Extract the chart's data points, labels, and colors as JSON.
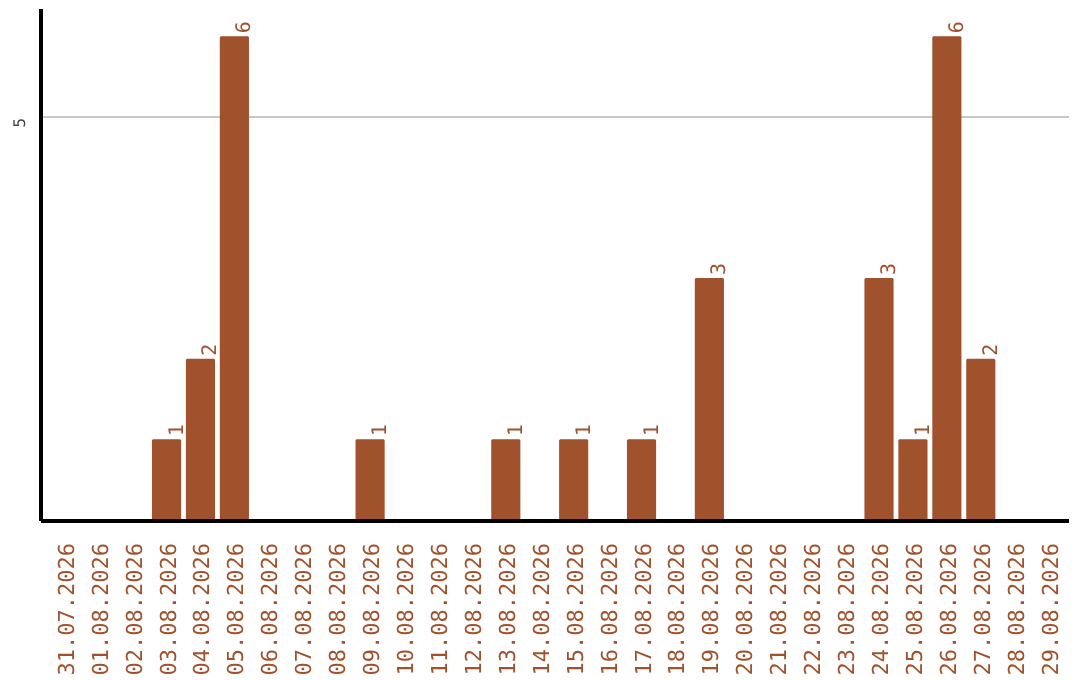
{
  "chart_data": {
    "type": "bar",
    "categories": [
      "31.07.2026",
      "01.08.2026",
      "02.08.2026",
      "03.08.2026",
      "04.08.2026",
      "05.08.2026",
      "06.08.2026",
      "07.08.2026",
      "08.08.2026",
      "09.08.2026",
      "10.08.2026",
      "11.08.2026",
      "12.08.2026",
      "13.08.2026",
      "14.08.2026",
      "15.08.2026",
      "16.08.2026",
      "17.08.2026",
      "18.08.2026",
      "19.08.2026",
      "20.08.2026",
      "21.08.2026",
      "22.08.2026",
      "23.08.2026",
      "24.08.2026",
      "25.08.2026",
      "26.08.2026",
      "27.08.2026",
      "28.08.2026",
      "29.08.2026"
    ],
    "values": [
      0,
      0,
      0,
      1,
      2,
      6,
      0,
      0,
      0,
      1,
      0,
      0,
      0,
      1,
      0,
      1,
      0,
      1,
      0,
      3,
      0,
      0,
      0,
      0,
      3,
      1,
      6,
      2,
      0,
      0
    ],
    "value_labels": [
      null,
      null,
      null,
      "1",
      "2",
      "6",
      null,
      null,
      null,
      "1",
      null,
      null,
      null,
      "1",
      null,
      "1",
      null,
      "1",
      null,
      "3",
      null,
      null,
      null,
      null,
      "3",
      "1",
      "6",
      "2",
      null,
      null
    ],
    "color": "#a0522d",
    "ylim": [
      0,
      6.35
    ],
    "yticks": [
      5
    ],
    "grid": "y"
  }
}
